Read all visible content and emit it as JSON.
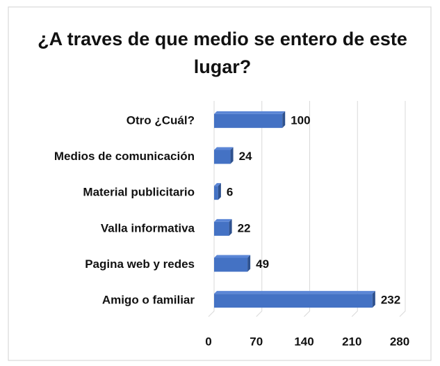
{
  "chart_data": {
    "type": "bar",
    "orientation": "horizontal",
    "title": "¿A traves de que medio se entero de este lugar?",
    "categories": [
      "Otro ¿Cuál?",
      "Medios de comunicación",
      "Material publicitario",
      "Valla informativa",
      "Pagina web y redes",
      "Amigo o familiar"
    ],
    "values": [
      100,
      24,
      6,
      22,
      49,
      232
    ],
    "color": "#4472c4",
    "xlim": [
      0,
      280
    ],
    "xticks": [
      0,
      70,
      140,
      210,
      280
    ],
    "grid": true
  }
}
